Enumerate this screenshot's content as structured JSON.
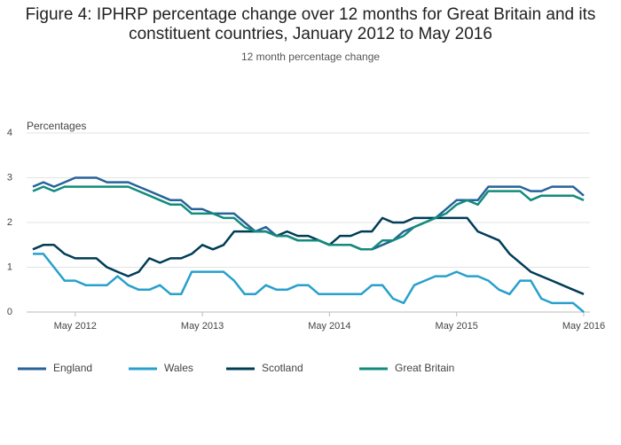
{
  "chart_data": {
    "type": "line",
    "title": "Figure 4: IPHRP percentage change over 12 months for Great Britain and its constituent countries, January 2012 to May 2016",
    "subtitle": "12 month percentage change",
    "y_label": "Percentages",
    "categories": [
      null,
      null,
      null,
      null,
      "May 2012",
      null,
      null,
      null,
      null,
      null,
      null,
      null,
      null,
      null,
      null,
      null,
      "May 2013",
      null,
      null,
      null,
      null,
      null,
      null,
      null,
      null,
      null,
      null,
      null,
      "May 2014",
      null,
      null,
      null,
      null,
      null,
      null,
      null,
      null,
      null,
      null,
      null,
      "May 2015",
      null,
      null,
      null,
      null,
      null,
      null,
      null,
      null,
      null,
      null,
      null,
      "May 2016"
    ],
    "ylim": [
      0,
      4
    ],
    "yticks": [
      0,
      1,
      2,
      3,
      4
    ],
    "grid": true,
    "legend": "bottom",
    "series": [
      {
        "name": "England",
        "color": "#27629a",
        "values": [
          2.8,
          2.9,
          2.8,
          2.9,
          3.0,
          3.0,
          3.0,
          2.9,
          2.9,
          2.9,
          2.8,
          2.7,
          2.6,
          2.5,
          2.5,
          2.3,
          2.3,
          2.2,
          2.2,
          2.2,
          2.0,
          1.8,
          1.9,
          1.7,
          1.7,
          1.6,
          1.6,
          1.6,
          1.5,
          1.5,
          1.5,
          1.4,
          1.4,
          1.5,
          1.6,
          1.8,
          1.9,
          2.0,
          2.1,
          2.3,
          2.5,
          2.5,
          2.5,
          2.8,
          2.8,
          2.8,
          2.8,
          2.7,
          2.7,
          2.8,
          2.8,
          2.8,
          2.6
        ]
      },
      {
        "name": "Wales",
        "color": "#27a0cc",
        "values": [
          1.3,
          1.3,
          1.0,
          0.7,
          0.7,
          0.6,
          0.6,
          0.6,
          0.8,
          0.6,
          0.5,
          0.5,
          0.6,
          0.4,
          0.4,
          0.9,
          0.9,
          0.9,
          0.9,
          0.7,
          0.4,
          0.4,
          0.6,
          0.5,
          0.5,
          0.6,
          0.6,
          0.4,
          0.4,
          0.4,
          0.4,
          0.4,
          0.6,
          0.6,
          0.3,
          0.2,
          0.6,
          0.7,
          0.8,
          0.8,
          0.9,
          0.8,
          0.8,
          0.7,
          0.5,
          0.4,
          0.7,
          0.7,
          0.3,
          0.2,
          0.2,
          0.2,
          0.0
        ]
      },
      {
        "name": "Scotland",
        "color": "#003c57",
        "values": [
          1.4,
          1.5,
          1.5,
          1.3,
          1.2,
          1.2,
          1.2,
          1.0,
          0.9,
          0.8,
          0.9,
          1.2,
          1.1,
          1.2,
          1.2,
          1.3,
          1.5,
          1.4,
          1.5,
          1.8,
          1.8,
          1.8,
          1.8,
          1.7,
          1.8,
          1.7,
          1.7,
          1.6,
          1.5,
          1.7,
          1.7,
          1.8,
          1.8,
          2.1,
          2.0,
          2.0,
          2.1,
          2.1,
          2.1,
          2.1,
          2.1,
          2.1,
          1.8,
          1.7,
          1.6,
          1.3,
          1.1,
          0.9,
          0.8,
          0.7,
          0.6,
          0.5,
          0.4
        ]
      },
      {
        "name": "Great Britain",
        "color": "#118c7b",
        "values": [
          2.7,
          2.8,
          2.7,
          2.8,
          2.8,
          2.8,
          2.8,
          2.8,
          2.8,
          2.8,
          2.7,
          2.6,
          2.5,
          2.4,
          2.4,
          2.2,
          2.2,
          2.2,
          2.1,
          2.1,
          1.9,
          1.8,
          1.8,
          1.7,
          1.7,
          1.6,
          1.6,
          1.6,
          1.5,
          1.5,
          1.5,
          1.4,
          1.4,
          1.6,
          1.6,
          1.7,
          1.9,
          2.0,
          2.1,
          2.2,
          2.4,
          2.5,
          2.4,
          2.7,
          2.7,
          2.7,
          2.7,
          2.5,
          2.6,
          2.6,
          2.6,
          2.6,
          2.5
        ]
      }
    ]
  }
}
